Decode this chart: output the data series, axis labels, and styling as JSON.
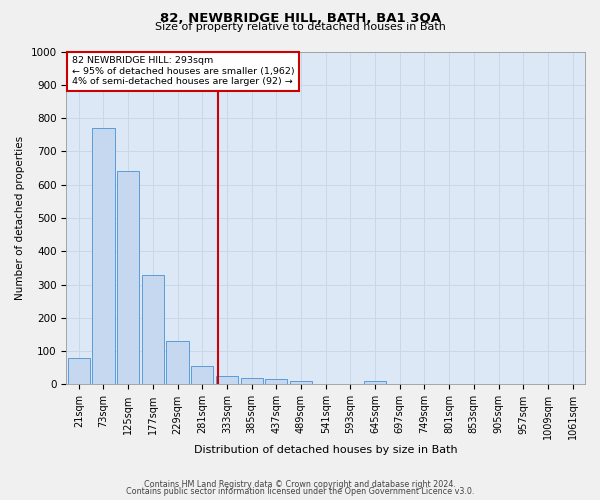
{
  "title1": "82, NEWBRIDGE HILL, BATH, BA1 3QA",
  "title2": "Size of property relative to detached houses in Bath",
  "xlabel": "Distribution of detached houses by size in Bath",
  "ylabel": "Number of detached properties",
  "bar_labels": [
    "21sqm",
    "73sqm",
    "125sqm",
    "177sqm",
    "229sqm",
    "281sqm",
    "333sqm",
    "385sqm",
    "437sqm",
    "489sqm",
    "541sqm",
    "593sqm",
    "645sqm",
    "697sqm",
    "749sqm",
    "801sqm",
    "853sqm",
    "905sqm",
    "957sqm",
    "1009sqm",
    "1061sqm"
  ],
  "bar_values": [
    80,
    770,
    640,
    330,
    130,
    55,
    25,
    20,
    15,
    10,
    0,
    0,
    10,
    0,
    0,
    0,
    0,
    0,
    0,
    0,
    0
  ],
  "bar_color": "#c5d8f0",
  "bar_edge_color": "#5b9bd5",
  "red_line_x": 5.62,
  "annotation_line1": "82 NEWBRIDGE HILL: 293sqm",
  "annotation_line2": "← 95% of detached houses are smaller (1,962)",
  "annotation_line3": "4% of semi-detached houses are larger (92) →",
  "annotation_box_color": "#ffffff",
  "annotation_box_edge": "#cc0000",
  "vline_color": "#cc0000",
  "ylim": [
    0,
    1000
  ],
  "yticks": [
    0,
    100,
    200,
    300,
    400,
    500,
    600,
    700,
    800,
    900,
    1000
  ],
  "grid_color": "#c8d8e8",
  "bg_color": "#dce8f5",
  "fig_bg_color": "#f0f0f0",
  "footer1": "Contains HM Land Registry data © Crown copyright and database right 2024.",
  "footer2": "Contains public sector information licensed under the Open Government Licence v3.0."
}
